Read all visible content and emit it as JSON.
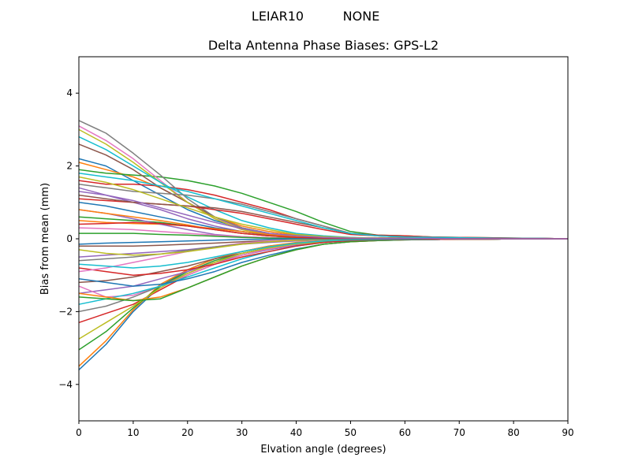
{
  "figure": {
    "suptitle_antenna": "LEIAR10",
    "suptitle_radome": "NONE"
  },
  "chart_data": {
    "type": "line",
    "title": "Delta Antenna Phase Biases: GPS-L2",
    "xlabel": "Elvation angle (degrees)",
    "ylabel": "Bias from mean (mm)",
    "xlim": [
      0,
      90
    ],
    "ylim": [
      -5,
      5
    ],
    "xticks": [
      0,
      10,
      20,
      30,
      40,
      50,
      60,
      70,
      80,
      90
    ],
    "yticks": [
      -4,
      -2,
      0,
      2,
      4
    ],
    "ytick_labels": [
      "−4",
      "−2",
      "0",
      "2",
      "4"
    ],
    "grid": false,
    "legend": "none",
    "x": [
      0,
      5,
      10,
      15,
      20,
      25,
      30,
      35,
      40,
      45,
      50,
      55,
      60,
      65,
      70,
      75,
      80,
      85,
      90
    ],
    "series": [
      {
        "color": "#1f77b4",
        "values": [
          2.2,
          2.0,
          1.6,
          1.2,
          0.8,
          0.5,
          0.3,
          0.15,
          0.08,
          0.05,
          0.03,
          0.02,
          0.02,
          0.02,
          0.01,
          0.01,
          0.0,
          0.0,
          0.0
        ]
      },
      {
        "color": "#ff7f0e",
        "values": [
          2.1,
          1.9,
          1.7,
          1.4,
          1.0,
          0.6,
          0.35,
          0.2,
          0.1,
          0.05,
          0.03,
          0.02,
          0.02,
          0.02,
          0.01,
          0.01,
          0.0,
          0.0,
          0.0
        ]
      },
      {
        "color": "#2ca02c",
        "values": [
          1.9,
          1.8,
          1.75,
          1.7,
          1.6,
          1.45,
          1.25,
          1.0,
          0.75,
          0.45,
          0.2,
          0.1,
          0.08,
          0.05,
          0.04,
          0.03,
          0.02,
          0.01,
          0.0
        ]
      },
      {
        "color": "#d62728",
        "values": [
          1.6,
          1.5,
          1.5,
          1.45,
          1.35,
          1.2,
          1.0,
          0.8,
          0.55,
          0.35,
          0.15,
          0.1,
          0.08,
          0.05,
          0.04,
          0.03,
          0.02,
          0.01,
          0.0
        ]
      },
      {
        "color": "#9467bd",
        "values": [
          1.4,
          1.2,
          1.0,
          0.8,
          0.55,
          0.35,
          0.2,
          0.1,
          0.05,
          0.03,
          0.02,
          0.01,
          0.01,
          0.01,
          0.0,
          0.0,
          0.0,
          0.0,
          0.0
        ]
      },
      {
        "color": "#8c564b",
        "values": [
          2.6,
          2.3,
          1.9,
          1.4,
          1.0,
          0.6,
          0.3,
          0.15,
          0.08,
          0.05,
          0.03,
          0.02,
          0.02,
          0.02,
          0.01,
          0.01,
          0.0,
          0.0,
          0.0
        ]
      },
      {
        "color": "#e377c2",
        "values": [
          3.1,
          2.7,
          2.2,
          1.6,
          1.0,
          0.55,
          0.3,
          0.15,
          0.08,
          0.05,
          0.03,
          0.02,
          0.02,
          0.02,
          0.01,
          0.01,
          0.0,
          0.0,
          0.0
        ]
      },
      {
        "color": "#7f7f7f",
        "values": [
          3.25,
          2.9,
          2.35,
          1.75,
          1.1,
          0.6,
          0.3,
          0.15,
          0.08,
          0.05,
          0.03,
          0.02,
          0.02,
          0.02,
          0.01,
          0.01,
          0.0,
          0.0,
          0.0
        ]
      },
      {
        "color": "#bcbd22",
        "values": [
          3.0,
          2.6,
          2.1,
          1.55,
          1.0,
          0.55,
          0.25,
          0.12,
          0.06,
          0.04,
          0.03,
          0.02,
          0.02,
          0.02,
          0.01,
          0.01,
          0.0,
          0.0,
          0.0
        ]
      },
      {
        "color": "#17becf",
        "values": [
          2.8,
          2.45,
          2.0,
          1.55,
          1.15,
          0.8,
          0.5,
          0.3,
          0.15,
          0.08,
          0.04,
          0.02,
          0.02,
          0.02,
          0.01,
          0.01,
          0.0,
          0.0,
          0.0
        ]
      },
      {
        "color": "#1f77b4",
        "values": [
          1.0,
          0.9,
          0.75,
          0.6,
          0.45,
          0.3,
          0.2,
          0.1,
          0.05,
          0.03,
          0.02,
          0.01,
          0.01,
          0.01,
          0.0,
          0.0,
          0.0,
          0.0,
          0.0
        ]
      },
      {
        "color": "#ff7f0e",
        "values": [
          0.5,
          0.45,
          0.42,
          0.4,
          0.35,
          0.28,
          0.2,
          0.12,
          0.06,
          0.03,
          0.02,
          0.01,
          0.01,
          0.01,
          0.0,
          0.0,
          0.0,
          0.0,
          0.0
        ]
      },
      {
        "color": "#2ca02c",
        "values": [
          0.6,
          0.55,
          0.5,
          0.45,
          0.35,
          0.25,
          0.15,
          0.08,
          0.04,
          0.02,
          0.01,
          0.01,
          0.01,
          0.01,
          0.0,
          0.0,
          0.0,
          0.0,
          0.0
        ]
      },
      {
        "color": "#d62728",
        "values": [
          1.1,
          1.05,
          1.0,
          0.95,
          0.9,
          0.8,
          0.7,
          0.55,
          0.4,
          0.25,
          0.12,
          0.08,
          0.05,
          0.04,
          0.03,
          0.02,
          0.01,
          0.01,
          0.0
        ]
      },
      {
        "color": "#9467bd",
        "values": [
          0.8,
          0.7,
          0.55,
          0.4,
          0.25,
          0.12,
          0.06,
          0.03,
          0.02,
          0.01,
          0.01,
          0.01,
          0.01,
          0.0,
          0.0,
          0.0,
          0.0,
          0.0,
          0.0
        ]
      },
      {
        "color": "#8c564b",
        "values": [
          1.2,
          1.1,
          1.0,
          0.95,
          0.9,
          0.85,
          0.75,
          0.6,
          0.45,
          0.3,
          0.15,
          0.08,
          0.05,
          0.04,
          0.03,
          0.02,
          0.01,
          0.01,
          0.0
        ]
      },
      {
        "color": "#e377c2",
        "values": [
          0.3,
          0.28,
          0.25,
          0.2,
          0.15,
          0.1,
          0.06,
          0.03,
          0.02,
          0.01,
          0.01,
          0.01,
          0.0,
          0.0,
          0.0,
          0.0,
          0.0,
          0.0,
          0.0
        ]
      },
      {
        "color": "#7f7f7f",
        "values": [
          1.5,
          1.4,
          1.3,
          1.25,
          1.2,
          1.1,
          0.95,
          0.75,
          0.55,
          0.35,
          0.15,
          0.08,
          0.05,
          0.04,
          0.03,
          0.02,
          0.01,
          0.01,
          0.0
        ]
      },
      {
        "color": "#bcbd22",
        "values": [
          1.7,
          1.55,
          1.35,
          1.1,
          0.85,
          0.6,
          0.4,
          0.25,
          0.12,
          0.06,
          0.03,
          0.02,
          0.02,
          0.01,
          0.01,
          0.01,
          0.0,
          0.0,
          0.0
        ]
      },
      {
        "color": "#17becf",
        "values": [
          1.8,
          1.7,
          1.6,
          1.45,
          1.3,
          1.1,
          0.9,
          0.7,
          0.5,
          0.3,
          0.15,
          0.08,
          0.05,
          0.04,
          0.03,
          0.02,
          0.01,
          0.01,
          0.0
        ]
      },
      {
        "color": "#1f77b4",
        "values": [
          -3.6,
          -2.9,
          -2.0,
          -1.3,
          -0.85,
          -0.55,
          -0.35,
          -0.2,
          -0.12,
          -0.07,
          -0.04,
          -0.03,
          -0.02,
          -0.02,
          -0.01,
          -0.01,
          0.0,
          0.0,
          0.0
        ]
      },
      {
        "color": "#ff7f0e",
        "values": [
          -3.5,
          -2.8,
          -1.95,
          -1.25,
          -0.85,
          -0.55,
          -0.35,
          -0.2,
          -0.1,
          -0.06,
          -0.04,
          -0.03,
          -0.02,
          -0.02,
          -0.01,
          -0.01,
          0.0,
          0.0,
          0.0
        ]
      },
      {
        "color": "#2ca02c",
        "values": [
          -3.05,
          -2.55,
          -1.9,
          -1.3,
          -0.9,
          -0.6,
          -0.4,
          -0.25,
          -0.15,
          -0.08,
          -0.04,
          -0.03,
          -0.02,
          -0.02,
          -0.01,
          -0.01,
          0.0,
          0.0,
          0.0
        ]
      },
      {
        "color": "#d62728",
        "values": [
          -2.3,
          -2.05,
          -1.8,
          -1.4,
          -1.0,
          -0.7,
          -0.45,
          -0.28,
          -0.15,
          -0.08,
          -0.04,
          -0.03,
          -0.02,
          -0.02,
          -0.01,
          -0.01,
          0.0,
          0.0,
          0.0
        ]
      },
      {
        "color": "#9467bd",
        "values": [
          -1.5,
          -1.4,
          -1.3,
          -1.1,
          -0.9,
          -0.65,
          -0.45,
          -0.3,
          -0.18,
          -0.1,
          -0.05,
          -0.03,
          -0.02,
          -0.02,
          -0.01,
          -0.01,
          0.0,
          0.0,
          0.0
        ]
      },
      {
        "color": "#8c564b",
        "values": [
          -1.2,
          -1.15,
          -1.05,
          -0.9,
          -0.75,
          -0.55,
          -0.4,
          -0.25,
          -0.15,
          -0.08,
          -0.04,
          -0.03,
          -0.02,
          -0.02,
          -0.01,
          -0.01,
          0.0,
          0.0,
          0.0
        ]
      },
      {
        "color": "#e377c2",
        "values": [
          -1.3,
          -1.6,
          -1.55,
          -1.3,
          -1.0,
          -0.7,
          -0.45,
          -0.28,
          -0.15,
          -0.08,
          -0.04,
          -0.03,
          -0.02,
          -0.02,
          -0.01,
          -0.01,
          0.0,
          0.0,
          0.0
        ]
      },
      {
        "color": "#7f7f7f",
        "values": [
          -2.0,
          -1.85,
          -1.6,
          -1.3,
          -0.95,
          -0.65,
          -0.4,
          -0.25,
          -0.14,
          -0.08,
          -0.04,
          -0.03,
          -0.02,
          -0.02,
          -0.01,
          -0.01,
          0.0,
          0.0,
          0.0
        ]
      },
      {
        "color": "#bcbd22",
        "values": [
          -2.75,
          -2.3,
          -1.85,
          -1.35,
          -0.95,
          -0.65,
          -0.4,
          -0.25,
          -0.14,
          -0.08,
          -0.04,
          -0.03,
          -0.02,
          -0.02,
          -0.01,
          -0.01,
          0.0,
          0.0,
          0.0
        ]
      },
      {
        "color": "#17becf",
        "values": [
          -1.8,
          -1.65,
          -1.5,
          -1.3,
          -1.05,
          -0.8,
          -0.55,
          -0.35,
          -0.2,
          -0.1,
          -0.05,
          -0.03,
          -0.02,
          -0.02,
          -0.01,
          -0.01,
          0.0,
          0.0,
          0.0
        ]
      },
      {
        "color": "#1f77b4",
        "values": [
          -1.1,
          -1.2,
          -1.3,
          -1.25,
          -1.1,
          -0.9,
          -0.65,
          -0.45,
          -0.28,
          -0.15,
          -0.08,
          -0.05,
          -0.03,
          -0.02,
          -0.01,
          -0.01,
          0.0,
          0.0,
          0.0
        ]
      },
      {
        "color": "#ff7f0e",
        "values": [
          -1.5,
          -1.6,
          -1.7,
          -1.6,
          -1.35,
          -1.05,
          -0.75,
          -0.5,
          -0.3,
          -0.15,
          -0.08,
          -0.05,
          -0.03,
          -0.02,
          -0.01,
          -0.01,
          0.0,
          0.0,
          0.0
        ]
      },
      {
        "color": "#2ca02c",
        "values": [
          -1.6,
          -1.65,
          -1.7,
          -1.65,
          -1.35,
          -1.05,
          -0.75,
          -0.5,
          -0.3,
          -0.15,
          -0.08,
          -0.05,
          -0.03,
          -0.02,
          -0.01,
          -0.01,
          0.0,
          0.0,
          0.0
        ]
      },
      {
        "color": "#d62728",
        "values": [
          -0.8,
          -0.9,
          -1.0,
          -0.95,
          -0.85,
          -0.7,
          -0.5,
          -0.35,
          -0.2,
          -0.1,
          -0.05,
          -0.03,
          -0.02,
          -0.02,
          -0.01,
          -0.01,
          0.0,
          0.0,
          0.0
        ]
      },
      {
        "color": "#9467bd",
        "values": [
          -0.5,
          -0.45,
          -0.4,
          -0.35,
          -0.3,
          -0.22,
          -0.15,
          -0.1,
          -0.06,
          -0.03,
          -0.02,
          -0.01,
          -0.01,
          -0.01,
          0.0,
          0.0,
          0.0,
          0.0,
          0.0
        ]
      },
      {
        "color": "#8c564b",
        "values": [
          -0.2,
          -0.2,
          -0.2,
          -0.18,
          -0.15,
          -0.12,
          -0.08,
          -0.05,
          -0.03,
          -0.02,
          -0.01,
          -0.01,
          0.0,
          0.0,
          0.0,
          0.0,
          0.0,
          0.0,
          0.0
        ]
      },
      {
        "color": "#e377c2",
        "values": [
          -0.9,
          -0.8,
          -0.65,
          -0.5,
          -0.35,
          -0.22,
          -0.12,
          -0.06,
          -0.03,
          -0.02,
          -0.01,
          -0.01,
          0.0,
          0.0,
          0.0,
          0.0,
          0.0,
          0.0,
          0.0
        ]
      },
      {
        "color": "#7f7f7f",
        "values": [
          -0.6,
          -0.55,
          -0.5,
          -0.42,
          -0.32,
          -0.22,
          -0.14,
          -0.08,
          -0.04,
          -0.02,
          -0.01,
          -0.01,
          0.0,
          0.0,
          0.0,
          0.0,
          0.0,
          0.0,
          0.0
        ]
      },
      {
        "color": "#bcbd22",
        "values": [
          -0.3,
          -0.4,
          -0.45,
          -0.42,
          -0.35,
          -0.25,
          -0.15,
          -0.08,
          -0.04,
          -0.02,
          -0.01,
          -0.01,
          0.0,
          0.0,
          0.0,
          0.0,
          0.0,
          0.0,
          0.0
        ]
      },
      {
        "color": "#17becf",
        "values": [
          -0.7,
          -0.75,
          -0.8,
          -0.75,
          -0.65,
          -0.5,
          -0.35,
          -0.22,
          -0.12,
          -0.06,
          -0.03,
          -0.02,
          -0.01,
          -0.01,
          0.0,
          0.0,
          0.0,
          0.0,
          0.0
        ]
      },
      {
        "color": "#2ca02c",
        "values": [
          0.15,
          0.15,
          0.15,
          0.12,
          0.1,
          0.07,
          0.04,
          0.02,
          0.01,
          0.01,
          0.0,
          0.0,
          0.0,
          0.0,
          0.0,
          0.0,
          0.0,
          0.0,
          0.0
        ]
      },
      {
        "color": "#1f77b4",
        "values": [
          -0.15,
          -0.12,
          -0.1,
          -0.08,
          -0.06,
          -0.04,
          -0.02,
          -0.01,
          0.0,
          0.0,
          0.0,
          0.0,
          0.0,
          0.0,
          0.0,
          0.0,
          0.0,
          0.0,
          0.0
        ]
      },
      {
        "color": "#ff7f0e",
        "values": [
          0.8,
          0.7,
          0.6,
          0.5,
          0.38,
          0.25,
          0.15,
          0.08,
          0.04,
          0.02,
          0.01,
          0.01,
          0.01,
          0.0,
          0.0,
          0.0,
          0.0,
          0.0,
          0.0
        ]
      },
      {
        "color": "#d62728",
        "values": [
          0.4,
          0.42,
          0.45,
          0.42,
          0.35,
          0.25,
          0.15,
          0.08,
          0.04,
          0.02,
          0.01,
          0.01,
          0.01,
          0.0,
          0.0,
          0.0,
          0.0,
          0.0,
          0.0
        ]
      },
      {
        "color": "#9467bd",
        "values": [
          1.3,
          1.2,
          1.05,
          0.85,
          0.65,
          0.45,
          0.28,
          0.15,
          0.08,
          0.04,
          0.02,
          0.01,
          0.01,
          0.01,
          0.0,
          0.0,
          0.0,
          0.0,
          0.0
        ]
      }
    ]
  }
}
